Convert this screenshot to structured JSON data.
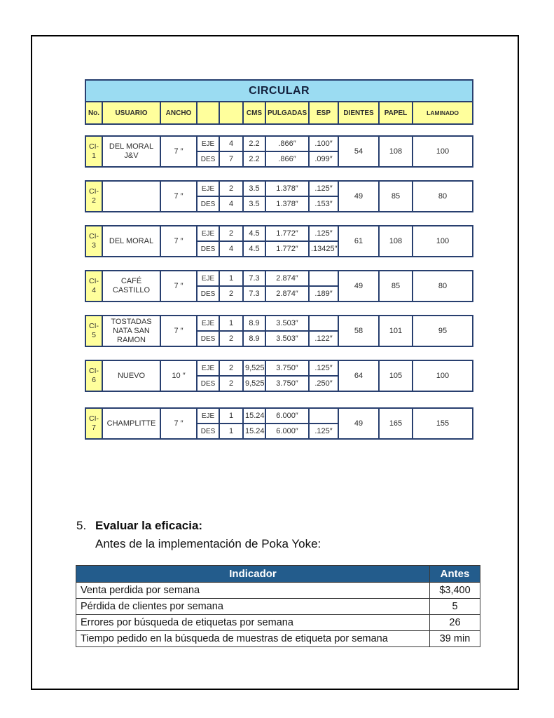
{
  "colors": {
    "circular_title_bg": "#9BDCF2",
    "column_header_bg": "#FFFF9C",
    "table_border": "#283F6F",
    "indicator_header_bg": "#235C8C",
    "indicator_header_text": "#FFFFFF"
  },
  "circular_table": {
    "title": "CIRCULAR",
    "columns": [
      "No.",
      "USUARIO",
      "ANCHO",
      "",
      "",
      "CMS",
      "PULGADAS",
      "ESP",
      "DIENTES",
      "PAPEL",
      "LAMINADO"
    ],
    "rows": [
      {
        "no": "CI-1",
        "usuario": "DEL MORAL J&V",
        "ancho": "7 ″",
        "sub": [
          [
            "EJE",
            "4",
            "2.2",
            ".866″",
            ".100″"
          ],
          [
            "DES",
            "7",
            "2.2",
            ".866″",
            ".099″"
          ]
        ],
        "dientes": "54",
        "papel": "108",
        "laminado": "100"
      },
      {
        "no": "CI-2",
        "usuario": "",
        "ancho": "7 ″",
        "sub": [
          [
            "EJE",
            "2",
            "3.5",
            "1.378″",
            ".125″"
          ],
          [
            "DES",
            "4",
            "3.5",
            "1.378″",
            ".153″"
          ]
        ],
        "dientes": "49",
        "papel": "85",
        "laminado": "80"
      },
      {
        "no": "CI-3",
        "usuario": "DEL MORAL",
        "ancho": "7 ″",
        "sub": [
          [
            "EJE",
            "2",
            "4.5",
            "1.772″",
            ".125″"
          ],
          [
            "DES",
            "4",
            "4.5",
            "1.772″",
            ".13425″"
          ]
        ],
        "dientes": "61",
        "papel": "108",
        "laminado": "100"
      },
      {
        "no": "CI-4",
        "usuario": "CAFÉ CASTILLO",
        "ancho": "7 ″",
        "sub": [
          [
            "EJE",
            "1",
            "7.3",
            "2.874″",
            ""
          ],
          [
            "DES",
            "2",
            "7.3",
            "2.874″",
            ".189″"
          ]
        ],
        "dientes": "49",
        "papel": "85",
        "laminado": "80"
      },
      {
        "no": "CI-5",
        "usuario": "TOSTADAS NATA SAN RAMON",
        "ancho": "7 ″",
        "sub": [
          [
            "EJE",
            "1",
            "8.9",
            "3.503″",
            ""
          ],
          [
            "DES",
            "2",
            "8.9",
            "3.503″",
            ".122″"
          ]
        ],
        "dientes": "58",
        "papel": "101",
        "laminado": "95"
      },
      {
        "no": "CI-6",
        "usuario": "NUEVO",
        "ancho": "10 ″",
        "sub": [
          [
            "EJE",
            "2",
            "9,525",
            "3.750″",
            ".125″"
          ],
          [
            "DES",
            "2",
            "9,525",
            "3.750″",
            ".250″"
          ]
        ],
        "dientes": "64",
        "papel": "105",
        "laminado": "100"
      },
      {
        "no": "CI-7",
        "usuario": "CHAMPLITTE",
        "ancho": "7 ″",
        "sub": [
          [
            "EJE",
            "1",
            "15.24",
            "6.000″",
            ""
          ],
          [
            "DES",
            "1",
            "15.24",
            "6.000″",
            ".125″"
          ]
        ],
        "dientes": "49",
        "papel": "165",
        "laminado": "155"
      }
    ]
  },
  "section": {
    "number": "5.",
    "title": "Evaluar la eficacia:",
    "subtitle": "Antes de la implementación de Poka Yoke:"
  },
  "indicator_table": {
    "headers": [
      "Indicador",
      "Antes"
    ],
    "rows": [
      [
        "Venta perdida por semana",
        "$3,400"
      ],
      [
        "Pérdida de clientes por semana",
        "5"
      ],
      [
        "Errores por búsqueda de etiquetas por semana",
        "26"
      ],
      [
        "Tiempo pedido en la búsqueda de muestras de etiqueta por semana",
        "39 min"
      ]
    ]
  }
}
